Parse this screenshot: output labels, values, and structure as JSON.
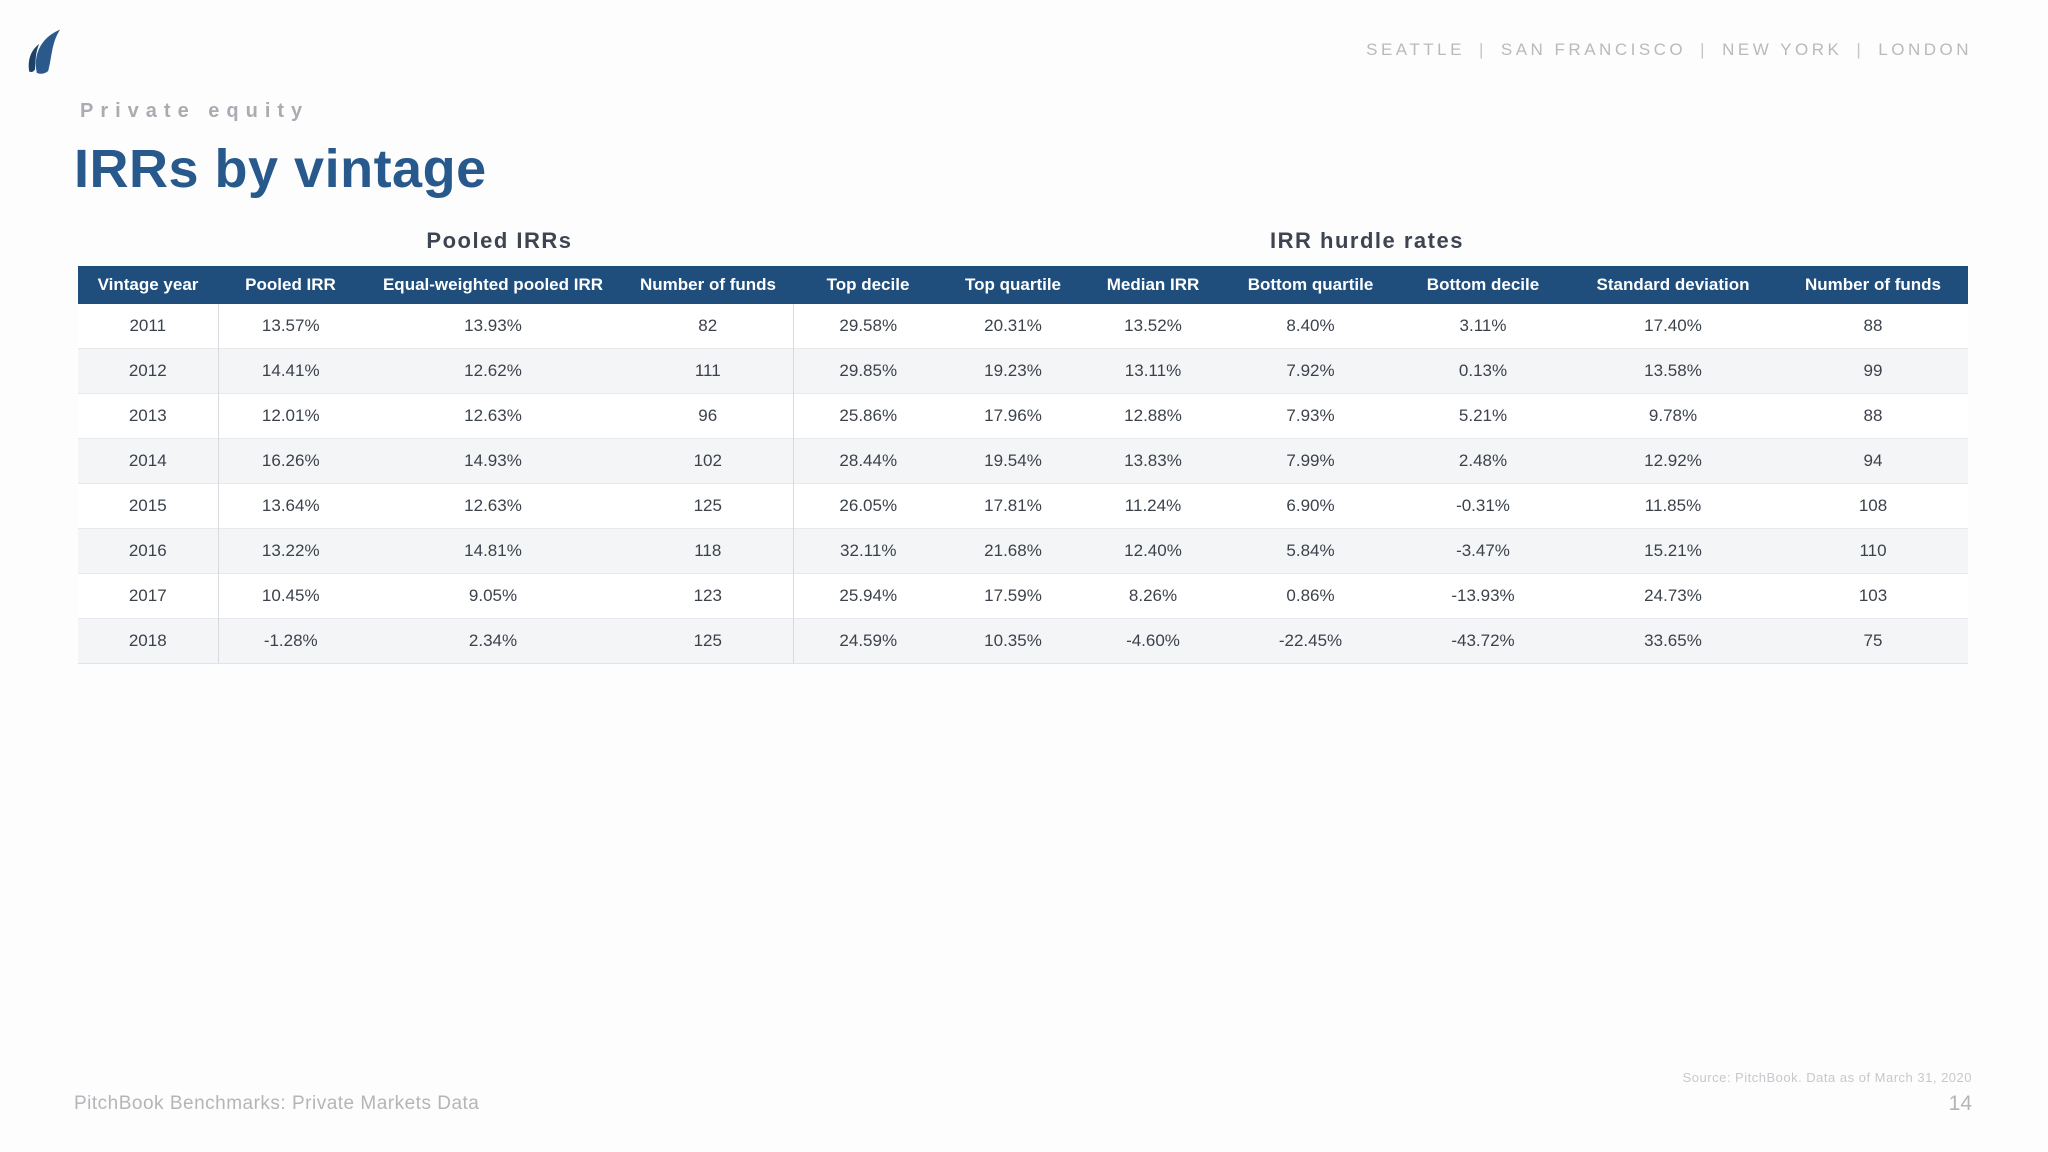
{
  "branding": {
    "logo_icon": "pitchbook-logo",
    "locations": [
      "SEATTLE",
      "SAN FRANCISCO",
      "NEW YORK",
      "LONDON"
    ],
    "locations_separator": "|"
  },
  "header": {
    "eyebrow": "Private equity",
    "title": "IRRs by vintage"
  },
  "table": {
    "group_headers": {
      "pooled": "Pooled IRRs",
      "hurdle": "IRR hurdle rates"
    },
    "columns": [
      "Vintage year",
      "Pooled IRR",
      "Equal-weighted pooled IRR",
      "Number of funds",
      "Top decile",
      "Top quartile",
      "Median IRR",
      "Bottom quartile",
      "Bottom decile",
      "Standard deviation",
      "Number of funds"
    ],
    "rows": [
      [
        "2011",
        "13.57%",
        "13.93%",
        "82",
        "29.58%",
        "20.31%",
        "13.52%",
        "8.40%",
        "3.11%",
        "17.40%",
        "88"
      ],
      [
        "2012",
        "14.41%",
        "12.62%",
        "111",
        "29.85%",
        "19.23%",
        "13.11%",
        "7.92%",
        "0.13%",
        "13.58%",
        "99"
      ],
      [
        "2013",
        "12.01%",
        "12.63%",
        "96",
        "25.86%",
        "17.96%",
        "12.88%",
        "7.93%",
        "5.21%",
        "9.78%",
        "88"
      ],
      [
        "2014",
        "16.26%",
        "14.93%",
        "102",
        "28.44%",
        "19.54%",
        "13.83%",
        "7.99%",
        "2.48%",
        "12.92%",
        "94"
      ],
      [
        "2015",
        "13.64%",
        "12.63%",
        "125",
        "26.05%",
        "17.81%",
        "11.24%",
        "6.90%",
        "-0.31%",
        "11.85%",
        "108"
      ],
      [
        "2016",
        "13.22%",
        "14.81%",
        "118",
        "32.11%",
        "21.68%",
        "12.40%",
        "5.84%",
        "-3.47%",
        "15.21%",
        "110"
      ],
      [
        "2017",
        "10.45%",
        "9.05%",
        "123",
        "25.94%",
        "17.59%",
        "8.26%",
        "0.86%",
        "-13.93%",
        "24.73%",
        "103"
      ],
      [
        "2018",
        "-1.28%",
        "2.34%",
        "125",
        "24.59%",
        "10.35%",
        "-4.60%",
        "-22.45%",
        "-43.72%",
        "33.65%",
        "75"
      ]
    ]
  },
  "footer": {
    "left_text": "PitchBook Benchmarks: Private Markets Data",
    "source_note": "Source: PitchBook. Data as of March 31, 2020",
    "page_number": "14"
  },
  "colors": {
    "table_header_bar": "#1f4e7c",
    "title_blue": "#27598c",
    "alt_row": "#f4f5f7",
    "muted_gray": "#b4b5b9",
    "section_header": "#3e4551"
  }
}
